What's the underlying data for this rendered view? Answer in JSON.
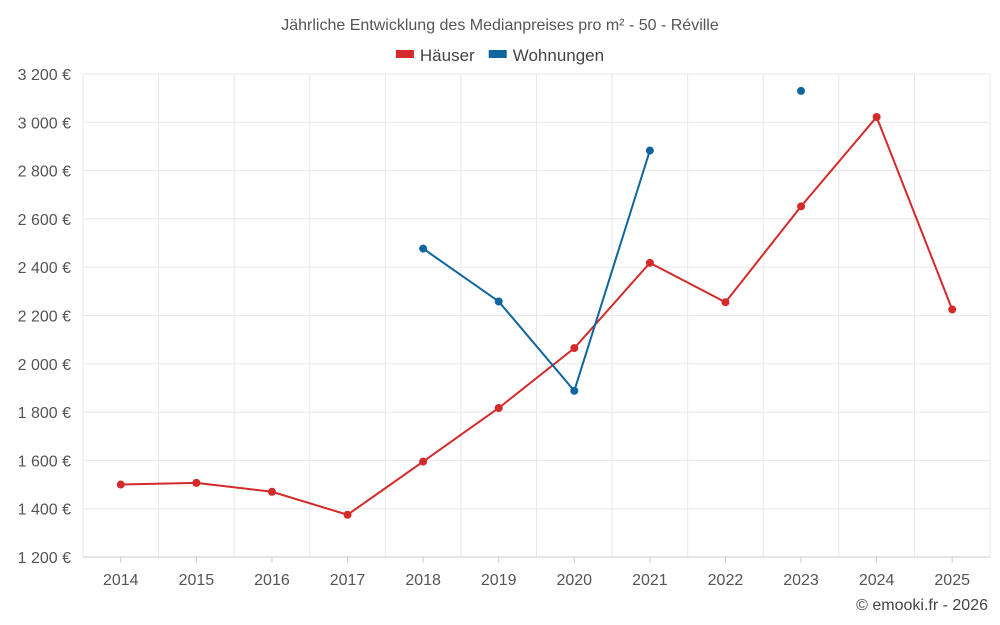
{
  "chart_data": {
    "type": "line",
    "title": "Jährliche Entwicklung des Medianpreises pro m² - 50 - Réville",
    "xlabel": "",
    "ylabel": "",
    "categories": [
      "2014",
      "2015",
      "2016",
      "2017",
      "2018",
      "2019",
      "2020",
      "2021",
      "2022",
      "2023",
      "2024",
      "2025"
    ],
    "ylim": [
      1200,
      3200
    ],
    "yticks": [
      1200,
      1400,
      1600,
      1800,
      2000,
      2200,
      2400,
      2600,
      2800,
      3000,
      3200
    ],
    "ytick_labels": [
      "1 200 €",
      "1 400 €",
      "1 600 €",
      "1 800 €",
      "2 000 €",
      "2 200 €",
      "2 400 €",
      "2 600 €",
      "2 800 €",
      "3 000 €",
      "3 200 €"
    ],
    "grid": true,
    "legend_position": "top-center",
    "series": [
      {
        "name": "Häuser",
        "color": "#d42a2a",
        "values": [
          1500,
          1507,
          1470,
          1375,
          1595,
          1817,
          2065,
          2418,
          2255,
          2652,
          3022,
          2225
        ]
      },
      {
        "name": "Wohnungen",
        "color": "#0e65a0",
        "values": [
          null,
          null,
          null,
          null,
          2477,
          2258,
          1888,
          2883,
          null,
          3130,
          null,
          null
        ]
      }
    ]
  },
  "credit": "© emooki.fr - 2026"
}
